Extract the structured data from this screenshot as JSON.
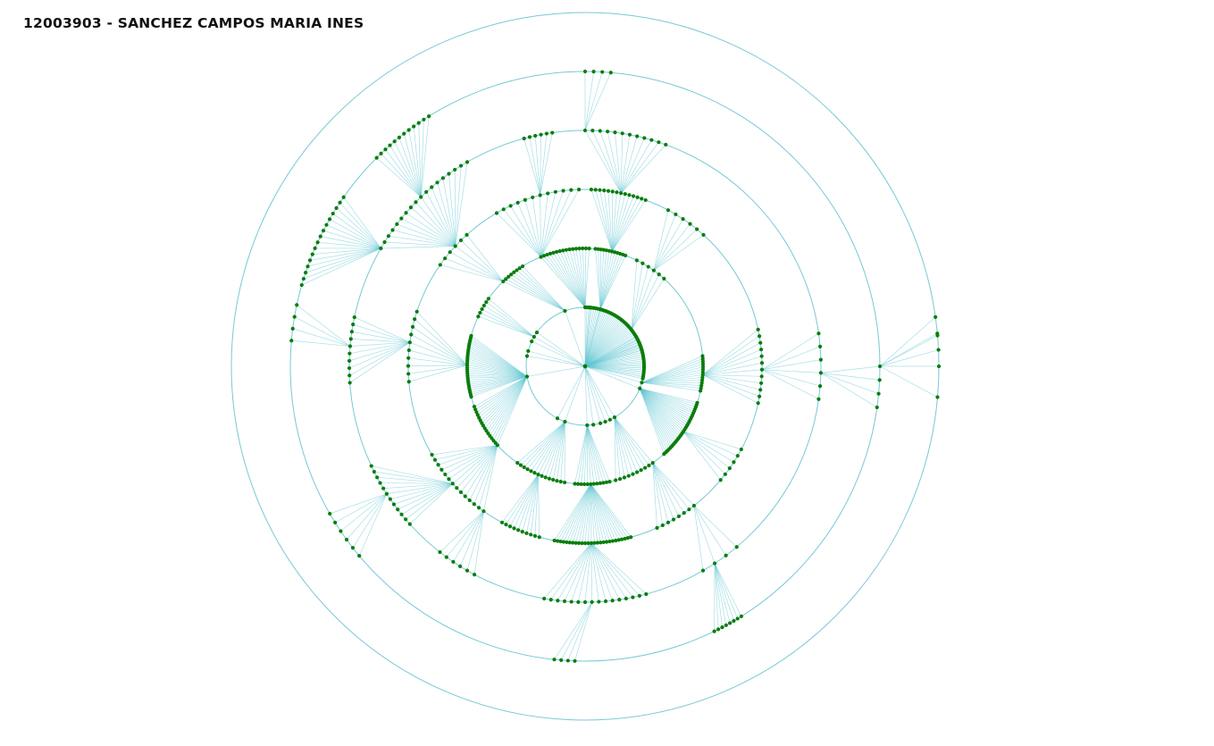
{
  "title": "12003903 - SANCHEZ CAMPOS MARIA INES",
  "colors": {
    "background": "#ffffff",
    "ring_stroke": "#5ebfcf",
    "edge_stroke": "#5ec4d2",
    "node_fill": "#0a7d0a",
    "title_text": "#111111"
  },
  "graph": {
    "layout": "radial-tree",
    "root": "12003903",
    "levels": 6,
    "groups": [
      {
        "level": 1,
        "a0": -90,
        "a1": 12,
        "n": 60,
        "leaf": true
      },
      {
        "level": 1,
        "a0": 16,
        "a1": 22,
        "n": 2,
        "leaf": false
      },
      {
        "level": 1,
        "a0": -30,
        "a1": -16,
        "n": 6,
        "leaf": true
      },
      {
        "level": 1,
        "a0": 60,
        "a1": 75,
        "n": 4,
        "leaf": true
      },
      {
        "level": 1,
        "a0": 82,
        "a1": 88,
        "n": 2,
        "leaf": false
      },
      {
        "level": 1,
        "a0": 110,
        "a1": 118,
        "n": 2,
        "leaf": true
      },
      {
        "level": 1,
        "a0": 170,
        "a1": 172,
        "n": 1,
        "leaf": false
      },
      {
        "level": 1,
        "a0": 190,
        "a1": 195,
        "n": 2,
        "leaf": true
      },
      {
        "level": 1,
        "a0": 205,
        "a1": 215,
        "n": 3,
        "leaf": true
      },
      {
        "level": 1,
        "a0": 250,
        "a1": 252,
        "n": 1,
        "leaf": false
      },
      {
        "level": 1,
        "a0": 275,
        "a1": 285,
        "n": 2,
        "leaf": true
      },
      {
        "level": 2,
        "a0": -5,
        "a1": 12,
        "n": 14,
        "leaf": true
      },
      {
        "level": 2,
        "a0": 18,
        "a1": 48,
        "n": 28,
        "leaf": true
      },
      {
        "level": 2,
        "a0": 55,
        "a1": 75,
        "n": 10,
        "leaf": true
      },
      {
        "level": 2,
        "a0": 78,
        "a1": 95,
        "n": 12,
        "leaf": true
      },
      {
        "level": 2,
        "a0": 100,
        "a1": 125,
        "n": 14,
        "leaf": true
      },
      {
        "level": 2,
        "a0": 138,
        "a1": 160,
        "n": 16,
        "leaf": true
      },
      {
        "level": 2,
        "a0": 165,
        "a1": 195,
        "n": 30,
        "leaf": true
      },
      {
        "level": 2,
        "a0": 205,
        "a1": 215,
        "n": 6,
        "leaf": true
      },
      {
        "level": 2,
        "a0": 226,
        "a1": 238,
        "n": 8,
        "leaf": true
      },
      {
        "level": 2,
        "a0": 248,
        "a1": 272,
        "n": 16,
        "leaf": true
      },
      {
        "level": 2,
        "a0": 275,
        "a1": 290,
        "n": 12,
        "leaf": true
      },
      {
        "level": 2,
        "a0": 296,
        "a1": 312,
        "n": 6,
        "leaf": true
      },
      {
        "level": 3,
        "a0": -12,
        "a1": 12,
        "n": 12,
        "leaf": true
      },
      {
        "level": 3,
        "a0": 28,
        "a1": 40,
        "n": 6,
        "leaf": true
      },
      {
        "level": 3,
        "a0": 52,
        "a1": 66,
        "n": 8,
        "leaf": true
      },
      {
        "level": 3,
        "a0": 75,
        "a1": 100,
        "n": 26,
        "leaf": true
      },
      {
        "level": 3,
        "a0": 105,
        "a1": 118,
        "n": 10,
        "leaf": true
      },
      {
        "level": 3,
        "a0": 125,
        "a1": 150,
        "n": 14,
        "leaf": true
      },
      {
        "level": 3,
        "a0": 175,
        "a1": 198,
        "n": 10,
        "leaf": true
      },
      {
        "level": 3,
        "a0": 215,
        "a1": 228,
        "n": 6,
        "leaf": true
      },
      {
        "level": 3,
        "a0": 240,
        "a1": 268,
        "n": 12,
        "leaf": true
      },
      {
        "level": 3,
        "a0": 272,
        "a1": 290,
        "n": 14,
        "leaf": true
      },
      {
        "level": 3,
        "a0": 298,
        "a1": 312,
        "n": 6,
        "leaf": true
      },
      {
        "level": 4,
        "a0": -8,
        "a1": 8,
        "n": 6,
        "leaf": true
      },
      {
        "level": 4,
        "a0": 50,
        "a1": 60,
        "n": 4,
        "leaf": true
      },
      {
        "level": 4,
        "a0": 75,
        "a1": 100,
        "n": 16,
        "leaf": true
      },
      {
        "level": 4,
        "a0": 118,
        "a1": 128,
        "n": 6,
        "leaf": true
      },
      {
        "level": 4,
        "a0": 138,
        "a1": 155,
        "n": 12,
        "leaf": true
      },
      {
        "level": 4,
        "a0": 176,
        "a1": 192,
        "n": 10,
        "leaf": true
      },
      {
        "level": 4,
        "a0": 210,
        "a1": 240,
        "n": 18,
        "leaf": true
      },
      {
        "level": 4,
        "a0": 255,
        "a1": 262,
        "n": 6,
        "leaf": true
      },
      {
        "level": 4,
        "a0": 270,
        "a1": 290,
        "n": 12,
        "leaf": true
      },
      {
        "level": 5,
        "a0": 0,
        "a1": 8,
        "n": 4,
        "leaf": true
      },
      {
        "level": 5,
        "a0": 58,
        "a1": 64,
        "n": 8,
        "leaf": true
      },
      {
        "level": 5,
        "a0": 92,
        "a1": 96,
        "n": 4,
        "leaf": true
      },
      {
        "level": 5,
        "a0": 140,
        "a1": 150,
        "n": 6,
        "leaf": true
      },
      {
        "level": 5,
        "a0": 185,
        "a1": 192,
        "n": 4,
        "leaf": true
      },
      {
        "level": 5,
        "a0": 196,
        "a1": 215,
        "n": 16,
        "leaf": true
      },
      {
        "level": 5,
        "a0": 225,
        "a1": 238,
        "n": 12,
        "leaf": true
      },
      {
        "level": 5,
        "a0": 270,
        "a1": 275,
        "n": 4,
        "leaf": true
      },
      {
        "level": 6,
        "a0": -8,
        "a1": 0,
        "n": 4,
        "leaf": true
      },
      {
        "level": 6,
        "a0": -5,
        "a1": 5,
        "n": 2,
        "leaf": true
      }
    ]
  }
}
